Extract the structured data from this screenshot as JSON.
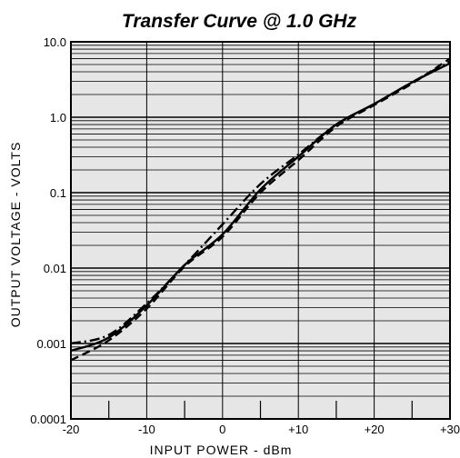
{
  "chart_data": {
    "type": "line",
    "title": "Transfer Curve @ 1.0 GHz",
    "xlabel": "INPUT POWER - dBm",
    "ylabel": "OUTPUT VOLTAGE - VOLTS",
    "xlim": [
      -20,
      30
    ],
    "ylim": [
      0.0001,
      10
    ],
    "yscale": "log",
    "grid": true,
    "x_ticks": [
      -20,
      -10,
      0,
      10,
      20,
      30
    ],
    "x_tick_labels": [
      "-20",
      "-10",
      "0",
      "+10",
      "+20",
      "+30"
    ],
    "y_ticks": [
      0.0001,
      0.001,
      0.01,
      0.1,
      1,
      10
    ],
    "y_tick_labels": [
      "0.0001",
      "0.001",
      "0.01",
      "0.1",
      "1.0",
      "10.0"
    ],
    "x": [
      -20,
      -15,
      -10,
      -5,
      0,
      5,
      10,
      15,
      20,
      25,
      30
    ],
    "series": [
      {
        "style": "solid",
        "values": [
          0.0008,
          0.0012,
          0.0032,
          0.011,
          0.028,
          0.11,
          0.3,
          0.8,
          1.5,
          2.9,
          5.2
        ]
      },
      {
        "style": "dashed",
        "values": [
          0.0006,
          0.0011,
          0.0029,
          0.0105,
          0.026,
          0.1,
          0.27,
          0.75,
          1.45,
          2.8,
          6.0
        ]
      },
      {
        "style": "dash-dot",
        "values": [
          0.001,
          0.0013,
          0.0034,
          0.011,
          0.038,
          0.13,
          0.32,
          0.8,
          1.5,
          2.9,
          5.5
        ]
      }
    ]
  }
}
